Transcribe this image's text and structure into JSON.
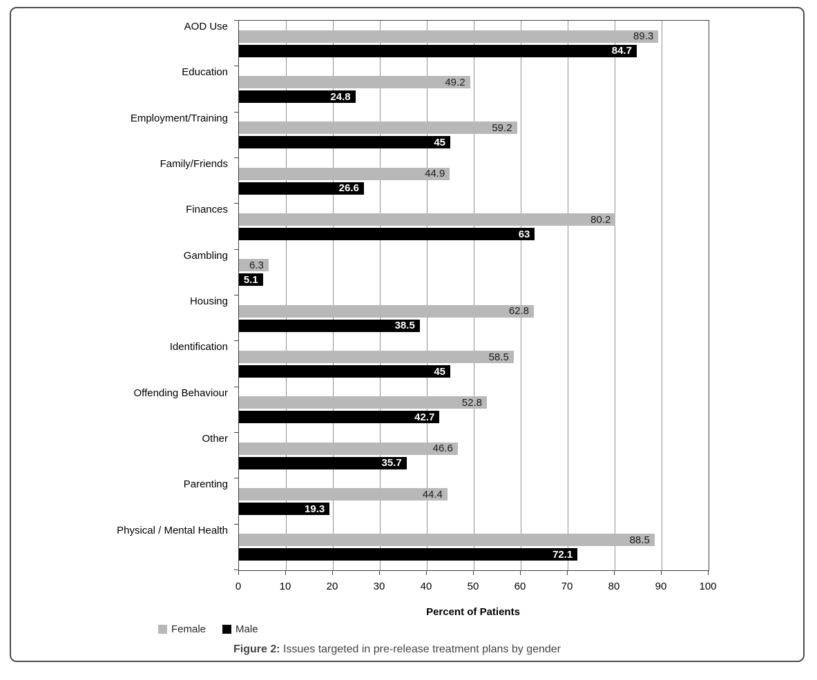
{
  "figure": {
    "caption_prefix": "Figure 2:",
    "caption_text": "Issues targeted in pre-release treatment plans by gender"
  },
  "chart_data": {
    "type": "bar",
    "orientation": "horizontal",
    "title": "",
    "xlabel": "Percent of Patients",
    "ylabel": "",
    "xlim": [
      0,
      100
    ],
    "xticks": [
      0,
      10,
      20,
      30,
      40,
      50,
      60,
      70,
      80,
      90,
      100
    ],
    "grid": true,
    "legend_position": "bottom-left",
    "categories": [
      "AOD Use",
      "Education",
      "Employment/Training",
      "Family/Friends",
      "Finances",
      "Gambling",
      "Housing",
      "Identification",
      "Offending Behaviour",
      "Other",
      "Parenting",
      "Physical / Mental Health"
    ],
    "series": [
      {
        "name": "Female",
        "color": "#b8b8b8",
        "label_color": "#1a1a1a",
        "label_bold": false,
        "values": [
          89.3,
          49.2,
          59.2,
          44.9,
          80.2,
          6.3,
          62.8,
          58.5,
          52.8,
          46.6,
          44.4,
          88.5
        ]
      },
      {
        "name": "Male",
        "color": "#000000",
        "label_color": "#ffffff",
        "label_bold": true,
        "values": [
          84.7,
          24.8,
          45,
          26.6,
          63,
          5.1,
          38.5,
          45,
          42.7,
          35.7,
          19.3,
          72.1
        ]
      }
    ]
  },
  "colors": {
    "female_bar": "#b8b8b8",
    "male_bar": "#000000",
    "gridline": "#909090",
    "axis": "#3f3f3f",
    "frame_border": "#4c4c4c"
  }
}
